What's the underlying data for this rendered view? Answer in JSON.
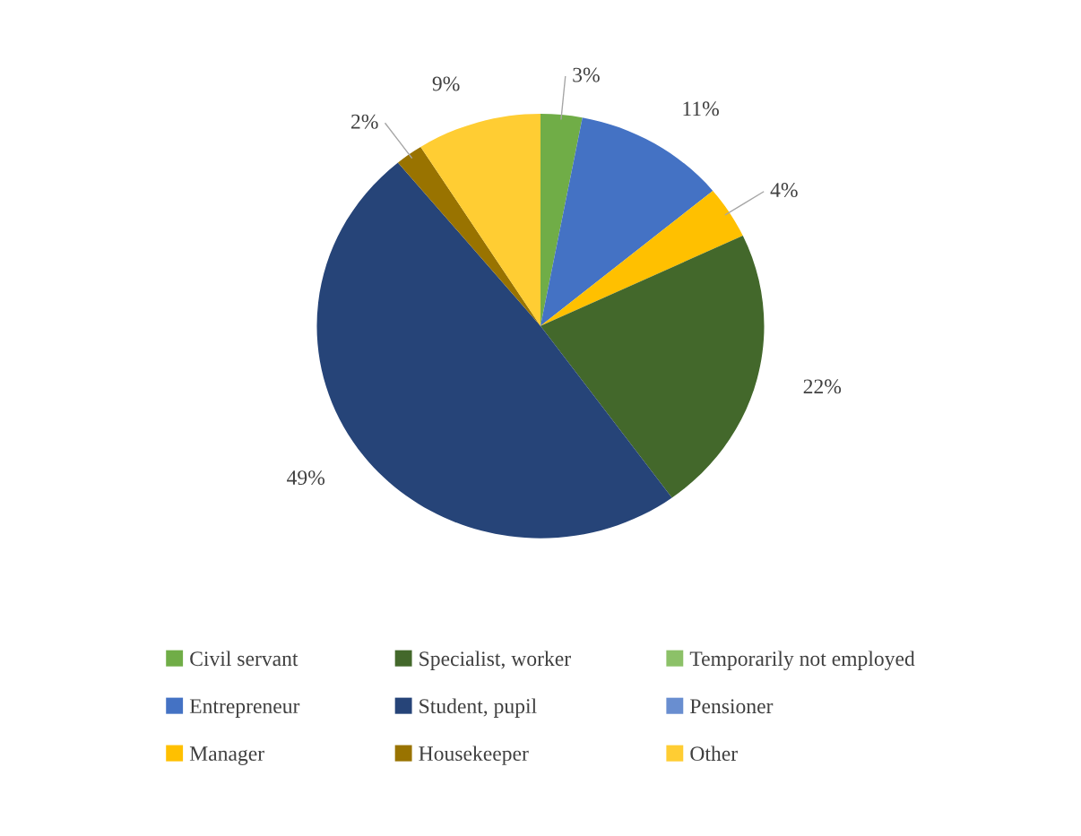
{
  "chart_data": {
    "type": "pie",
    "categories": [
      "Civil servant",
      "Entrepreneur",
      "Manager",
      "Specialist, worker",
      "Student, pupil",
      "Housekeeper",
      "Temporarily not employed",
      "Pensioner",
      "Other"
    ],
    "values": [
      3,
      11,
      4,
      22,
      49,
      2,
      0,
      0,
      9
    ],
    "value_labels": [
      "3%",
      "11%",
      "4%",
      "22%",
      "49%",
      "2%",
      null,
      null,
      "9%"
    ],
    "colors": [
      "#70ad47",
      "#4472c4",
      "#ffc000",
      "#43682b",
      "#264478",
      "#997300",
      "#8cc168",
      "#698ed0",
      "#ffcd33"
    ],
    "legend": "bottom"
  }
}
